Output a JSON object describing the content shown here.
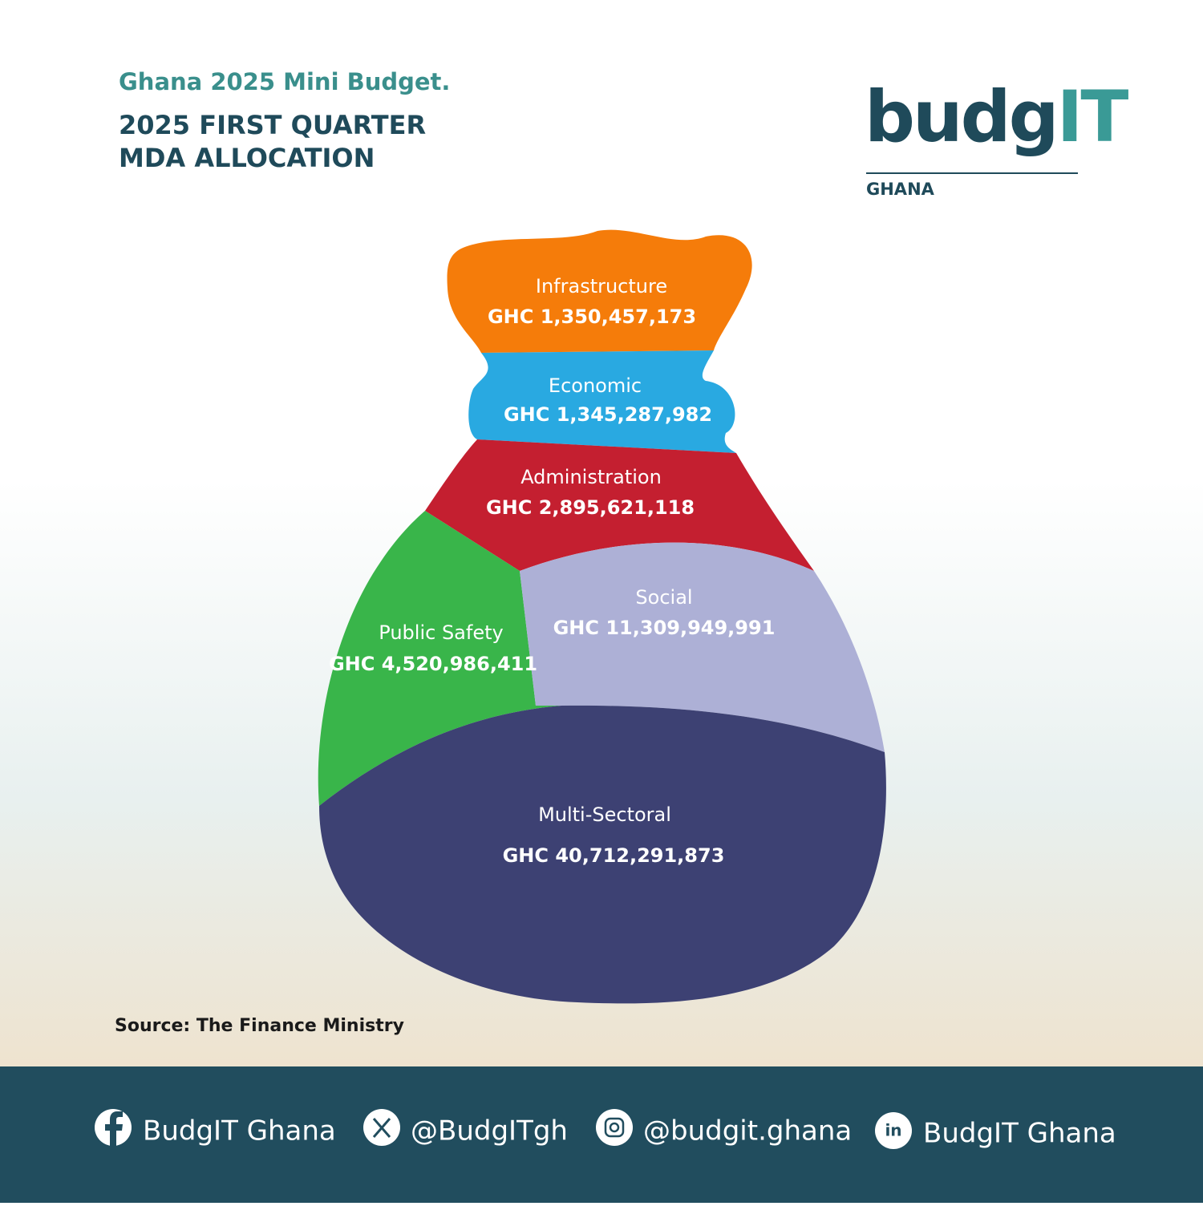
{
  "header": {
    "subtitle": "Ghana 2025 Mini Budget.",
    "title_lines": [
      "2025 FIRST QUARTER",
      "MDA ALLOCATION"
    ]
  },
  "logo": {
    "main": "budg",
    "accent": "IT",
    "country": "GHANA"
  },
  "segments": [
    {
      "label": "Infrastructure",
      "amount": "GHC 1,350,457,173"
    },
    {
      "label": "Economic",
      "amount": "GHC 1,345,287,982"
    },
    {
      "label": "Administration",
      "amount": "GHC 2,895,621,118"
    },
    {
      "label": "Social",
      "amount": "GHC 11,309,949,991"
    },
    {
      "label": "Public Safety",
      "amount": "GHC 4,520,986,411"
    },
    {
      "label": "Multi-Sectoral",
      "amount": "GHC 40,712,291,873"
    }
  ],
  "source": "Source: The Finance Ministry",
  "footer": {
    "links": [
      "BudgIT Ghana",
      "@BudgITgh",
      "@budgit.ghana",
      "BudgIT Ghana"
    ]
  }
}
